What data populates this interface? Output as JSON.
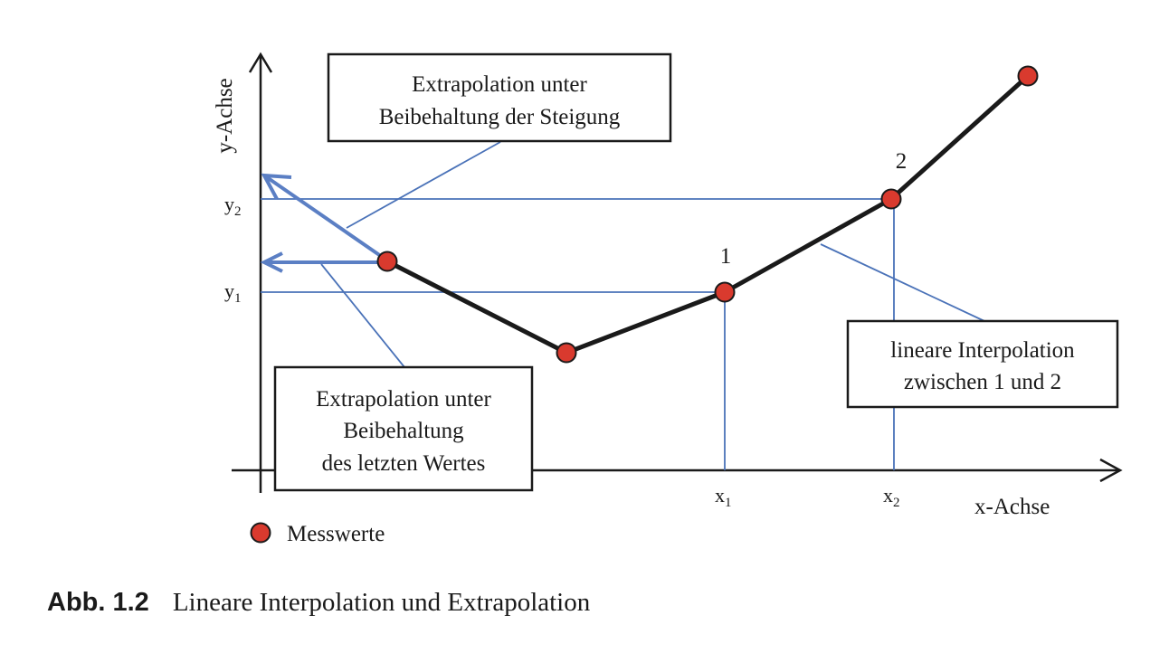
{
  "axes": {
    "y_label": "y-Achse",
    "x_label": "x-Achse",
    "y1_base": "y",
    "y1_sub": "1",
    "y2_base": "y",
    "y2_sub": "2",
    "x1_base": "x",
    "x1_sub": "1",
    "x2_base": "x",
    "x2_sub": "2"
  },
  "points": {
    "label_1": "1",
    "label_2": "2"
  },
  "boxes": {
    "slope": [
      "Extrapolation unter",
      "Beibehaltung der Steigung"
    ],
    "last_value": [
      "Extrapolation unter",
      "Beibehaltung",
      "des letzten Wertes"
    ],
    "interpolation": [
      "lineare Interpolation",
      "zwischen 1 und 2"
    ]
  },
  "legend": {
    "measured": "Messwerte"
  },
  "caption": {
    "number": "Abb. 1.2",
    "text": "Lineare Interpolation und Extrapolation"
  },
  "colors": {
    "point": "#d93a2e",
    "guide": "#4a72b8",
    "arrow": "#5b7fc4"
  }
}
